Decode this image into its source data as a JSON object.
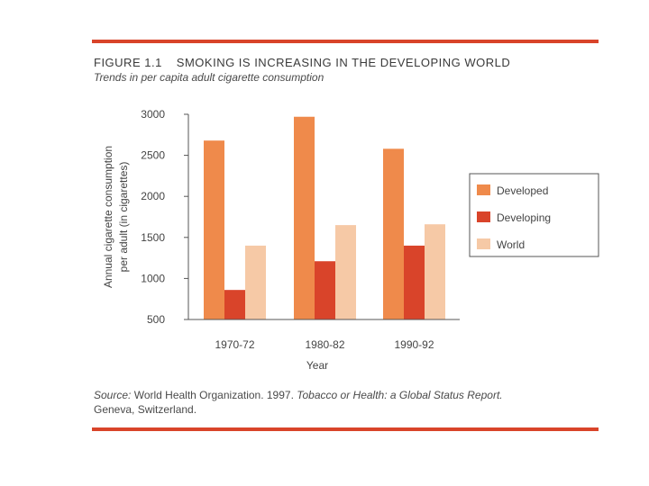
{
  "figure": {
    "number": "FIGURE 1.1",
    "title": "SMOKING IS INCREASING IN THE DEVELOPING WORLD",
    "subtitle": "Trends in per capita adult cigarette consumption"
  },
  "source": {
    "label": "Source:",
    "org": "World Health Organization. 1997.",
    "title": "Tobacco or Health: a Global Status Report.",
    "location": "Geneva, Switzerland."
  },
  "colors": {
    "rule": "#d9442a",
    "developed": "#ef8a4b",
    "developing": "#d9442a",
    "world": "#f6c9a6"
  },
  "chart_data": {
    "type": "bar",
    "title": "SMOKING IS INCREASING IN THE DEVELOPING WORLD",
    "categories": [
      "1970-72",
      "1980-82",
      "1990-92"
    ],
    "series": [
      {
        "name": "Developed",
        "values": [
          2680,
          2970,
          2580
        ]
      },
      {
        "name": "Developing",
        "values": [
          860,
          1210,
          1400
        ]
      },
      {
        "name": "World",
        "values": [
          1400,
          1650,
          1660
        ]
      }
    ],
    "xlabel": "Year",
    "ylabel_line1": "Annual cigarette consumption",
    "ylabel_line2": "per adult (in cigarettes)",
    "ylim": [
      500,
      3000
    ],
    "yticks": [
      500,
      1000,
      1500,
      2000,
      2500,
      3000
    ],
    "grid": false,
    "legend_position": "right"
  }
}
